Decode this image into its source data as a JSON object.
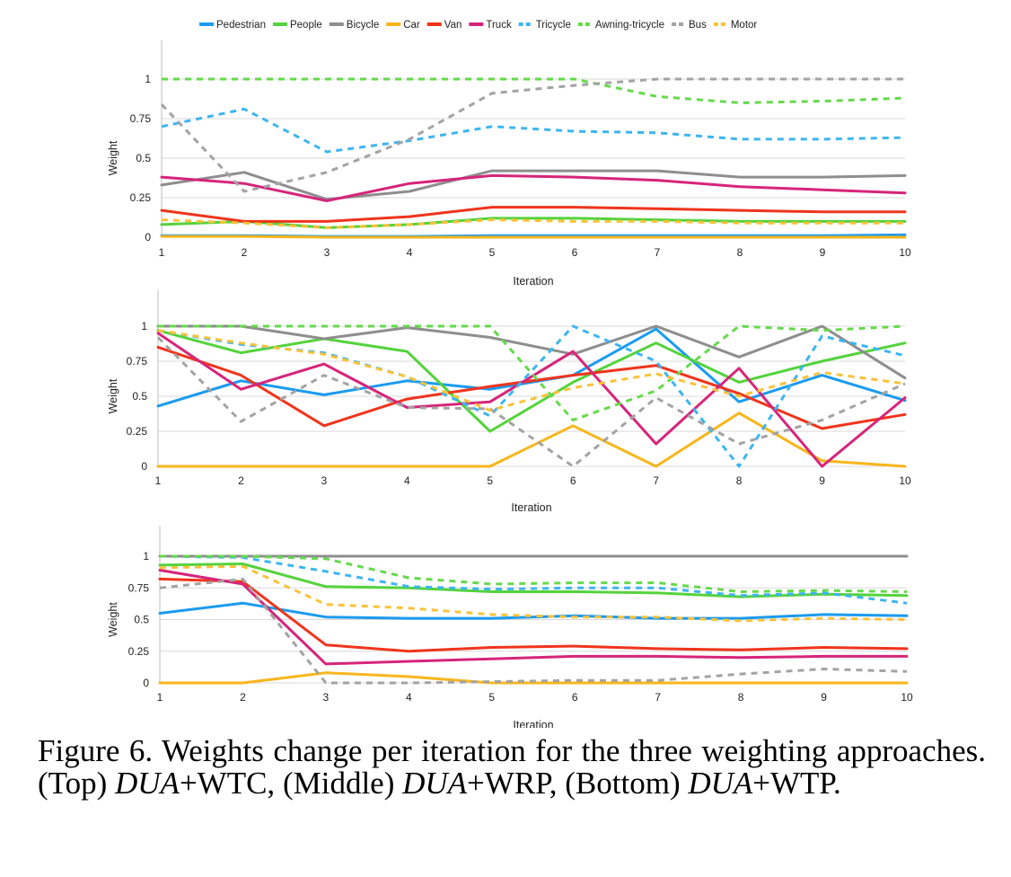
{
  "chart_data": [
    {
      "type": "line",
      "x": [
        1,
        2,
        3,
        4,
        5,
        6,
        7,
        8,
        9,
        10
      ],
      "xlabel": "Iteration",
      "ylabel": "Weight",
      "ylim": [
        0,
        1.2
      ],
      "yticks": [
        0,
        0.25,
        0.5,
        0.75,
        1
      ],
      "ytick_labels": [
        "0",
        "0.25",
        "0.5",
        "0.75",
        "1"
      ],
      "legend": "top",
      "grid": true,
      "series": [
        {
          "name": "Pedestrian",
          "values": [
            0.01,
            0.01,
            0.005,
            0.005,
            0.01,
            0.01,
            0.01,
            0.01,
            0.01,
            0.015
          ]
        },
        {
          "name": "People",
          "values": [
            0.08,
            0.1,
            0.06,
            0.08,
            0.12,
            0.12,
            0.11,
            0.1,
            0.1,
            0.1
          ]
        },
        {
          "name": "Bicycle",
          "values": [
            0.33,
            0.41,
            0.24,
            0.29,
            0.42,
            0.42,
            0.42,
            0.38,
            0.38,
            0.39
          ]
        },
        {
          "name": "Car",
          "values": [
            0.005,
            0.005,
            0.0,
            0.0,
            0.0,
            0.0,
            0.0,
            0.0,
            0.0,
            0.0
          ]
        },
        {
          "name": "Van",
          "values": [
            0.17,
            0.1,
            0.1,
            0.13,
            0.19,
            0.19,
            0.18,
            0.17,
            0.16,
            0.16
          ]
        },
        {
          "name": "Truck",
          "values": [
            0.38,
            0.34,
            0.23,
            0.34,
            0.39,
            0.38,
            0.36,
            0.32,
            0.3,
            0.28
          ]
        },
        {
          "name": "Tricycle",
          "values": [
            0.7,
            0.81,
            0.54,
            0.61,
            0.7,
            0.67,
            0.66,
            0.62,
            0.62,
            0.63
          ]
        },
        {
          "name": "Awning-tricycle",
          "values": [
            1.0,
            1.0,
            1.0,
            1.0,
            1.0,
            1.0,
            0.89,
            0.85,
            0.86,
            0.88
          ]
        },
        {
          "name": "Bus",
          "values": [
            0.84,
            0.29,
            0.41,
            0.62,
            0.91,
            0.96,
            1.0,
            1.0,
            1.0,
            1.0
          ]
        },
        {
          "name": "Motor",
          "values": [
            0.11,
            0.09,
            0.06,
            0.08,
            0.11,
            0.1,
            0.1,
            0.09,
            0.09,
            0.09
          ]
        }
      ]
    },
    {
      "type": "line",
      "x": [
        1,
        2,
        3,
        4,
        5,
        6,
        7,
        8,
        9,
        10
      ],
      "xlabel": "Iteration",
      "ylabel": "Weight",
      "ylim": [
        0,
        1.2
      ],
      "yticks": [
        0,
        0.25,
        0.5,
        0.75,
        1
      ],
      "ytick_labels": [
        "0",
        "0.25",
        "0.5",
        "0.75",
        "1"
      ],
      "grid": true,
      "series": [
        {
          "name": "Pedestrian",
          "values": [
            0.43,
            0.61,
            0.51,
            0.61,
            0.55,
            0.65,
            0.98,
            0.46,
            0.65,
            0.47
          ]
        },
        {
          "name": "People",
          "values": [
            0.97,
            0.81,
            0.91,
            0.82,
            0.25,
            0.6,
            0.88,
            0.6,
            0.75,
            0.88
          ]
        },
        {
          "name": "Bicycle",
          "values": [
            1.0,
            1.0,
            0.91,
            0.99,
            0.92,
            0.8,
            1.0,
            0.78,
            1.0,
            0.63
          ]
        },
        {
          "name": "Car",
          "values": [
            0.0,
            0.0,
            0.0,
            0.0,
            0.0,
            0.29,
            0.0,
            0.38,
            0.04,
            0.0
          ]
        },
        {
          "name": "Van",
          "values": [
            0.85,
            0.65,
            0.29,
            0.48,
            0.57,
            0.65,
            0.72,
            0.52,
            0.27,
            0.37
          ]
        },
        {
          "name": "Truck",
          "values": [
            0.95,
            0.55,
            0.73,
            0.42,
            0.46,
            0.82,
            0.16,
            0.7,
            0.0,
            0.49
          ]
        },
        {
          "name": "Tricycle",
          "values": [
            0.97,
            0.87,
            0.81,
            0.64,
            0.36,
            1.0,
            0.75,
            0.0,
            0.93,
            0.79
          ]
        },
        {
          "name": "Awning-tricycle",
          "values": [
            1.0,
            1.0,
            1.0,
            1.0,
            1.0,
            0.33,
            0.54,
            1.0,
            0.97,
            1.0
          ]
        },
        {
          "name": "Bus",
          "values": [
            0.92,
            0.32,
            0.65,
            0.42,
            0.41,
            0.0,
            0.49,
            0.16,
            0.33,
            0.59
          ]
        },
        {
          "name": "Motor",
          "values": [
            0.97,
            0.88,
            0.8,
            0.64,
            0.4,
            0.56,
            0.66,
            0.5,
            0.67,
            0.59
          ]
        }
      ]
    },
    {
      "type": "line",
      "x": [
        1,
        2,
        3,
        4,
        5,
        6,
        7,
        8,
        9,
        10
      ],
      "xlabel": "Iteration",
      "ylabel": "Weight",
      "ylim": [
        0,
        1.2
      ],
      "yticks": [
        0,
        0.25,
        0.5,
        0.75,
        1
      ],
      "ytick_labels": [
        "0",
        "0.25",
        "0.5",
        "0.75",
        "1"
      ],
      "grid": true,
      "series": [
        {
          "name": "Pedestrian",
          "values": [
            0.55,
            0.63,
            0.52,
            0.51,
            0.51,
            0.53,
            0.51,
            0.51,
            0.54,
            0.53
          ]
        },
        {
          "name": "People",
          "values": [
            0.93,
            0.94,
            0.76,
            0.75,
            0.72,
            0.72,
            0.71,
            0.68,
            0.7,
            0.69
          ]
        },
        {
          "name": "Bicycle",
          "values": [
            1.0,
            1.0,
            1.0,
            1.0,
            1.0,
            1.0,
            1.0,
            1.0,
            1.0,
            1.0
          ]
        },
        {
          "name": "Car",
          "values": [
            0.0,
            0.0,
            0.08,
            0.05,
            0.0,
            0.0,
            0.0,
            0.0,
            0.0,
            0.0
          ]
        },
        {
          "name": "Van",
          "values": [
            0.82,
            0.8,
            0.3,
            0.25,
            0.28,
            0.29,
            0.27,
            0.26,
            0.28,
            0.27
          ]
        },
        {
          "name": "Truck",
          "values": [
            0.89,
            0.78,
            0.15,
            0.17,
            0.19,
            0.21,
            0.21,
            0.2,
            0.21,
            0.21
          ]
        },
        {
          "name": "Tricycle",
          "values": [
            1.0,
            0.99,
            0.88,
            0.76,
            0.74,
            0.75,
            0.75,
            0.69,
            0.71,
            0.63
          ]
        },
        {
          "name": "Awning-tricycle",
          "values": [
            1.0,
            1.0,
            0.98,
            0.83,
            0.78,
            0.79,
            0.79,
            0.72,
            0.73,
            0.72
          ]
        },
        {
          "name": "Bus",
          "values": [
            0.75,
            0.82,
            0.0,
            0.0,
            0.01,
            0.02,
            0.02,
            0.07,
            0.11,
            0.09
          ]
        },
        {
          "name": "Motor",
          "values": [
            0.91,
            0.92,
            0.62,
            0.59,
            0.54,
            0.52,
            0.52,
            0.49,
            0.51,
            0.5
          ]
        }
      ]
    }
  ],
  "legend": [
    {
      "name": "Pedestrian",
      "color": "#1a9bf0",
      "dash": "solid"
    },
    {
      "name": "People",
      "color": "#54d33c",
      "dash": "solid"
    },
    {
      "name": "Bicycle",
      "color": "#8e8e8e",
      "dash": "solid"
    },
    {
      "name": "Car",
      "color": "#f7b61c",
      "dash": "solid"
    },
    {
      "name": "Van",
      "color": "#f0341c",
      "dash": "solid"
    },
    {
      "name": "Truck",
      "color": "#d6257a",
      "dash": "solid"
    },
    {
      "name": "Tricycle",
      "color": "#3db5f2",
      "dash": "dashed"
    },
    {
      "name": "Awning-tricycle",
      "color": "#66d94c",
      "dash": "dashed"
    },
    {
      "name": "Bus",
      "color": "#a3a3a3",
      "dash": "dashed"
    },
    {
      "name": "Motor",
      "color": "#f9c23a",
      "dash": "dashed"
    }
  ],
  "caption": {
    "label": "Figure 6.",
    "text": "Weights change per iteration for the three weighting approaches.",
    "top_label": "(Top)",
    "top_method": "DUA",
    "top_suffix": "+WTC,",
    "middle_label": "(Middle)",
    "middle_method": "DUA",
    "middle_suffix": "+WRP,",
    "bottom_label": "(Bottom)",
    "bottom_method": "DUA",
    "bottom_suffix": "+WTP."
  }
}
